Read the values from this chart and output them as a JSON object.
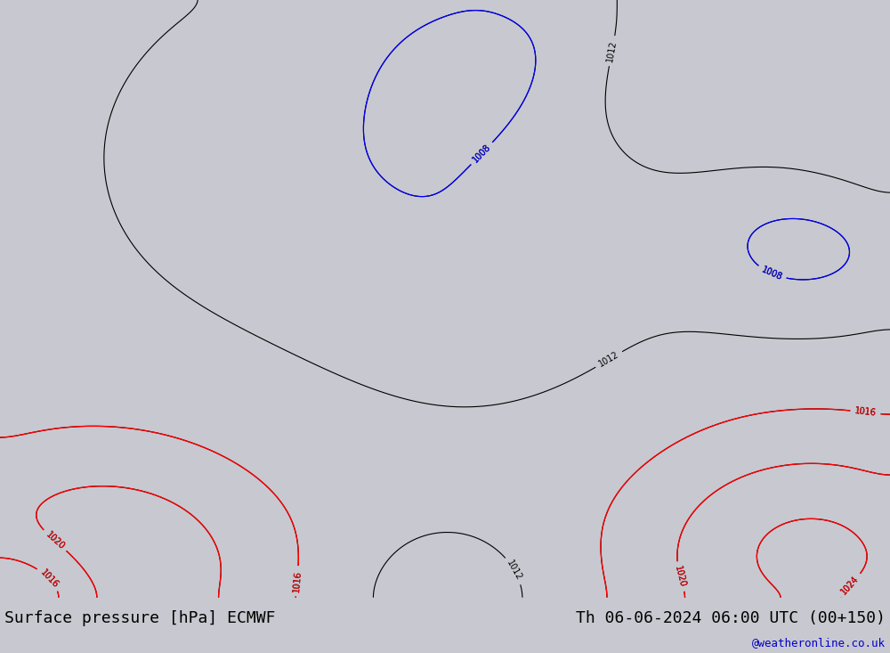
{
  "title_left": "Surface pressure [hPa] ECMWF",
  "title_right": "Th 06-06-2024 06:00 UTC (00+150)",
  "watermark": "@weatheronline.co.uk",
  "watermark_color": "#0000cc",
  "bg_color": "#c8c8d0",
  "land_color": "#aad4aa",
  "sea_color": "#c8c8d0",
  "figsize": [
    10.0,
    7.33
  ],
  "dpi": 100,
  "bottom_bar_color": "#e0e0e0",
  "title_fontsize": 13,
  "isobar_black_color": "#000000",
  "isobar_red_color": "#cc0000",
  "isobar_blue_color": "#0000cc",
  "lon_min": -30,
  "lon_max": 60,
  "lat_min": -42,
  "lat_max": 45
}
